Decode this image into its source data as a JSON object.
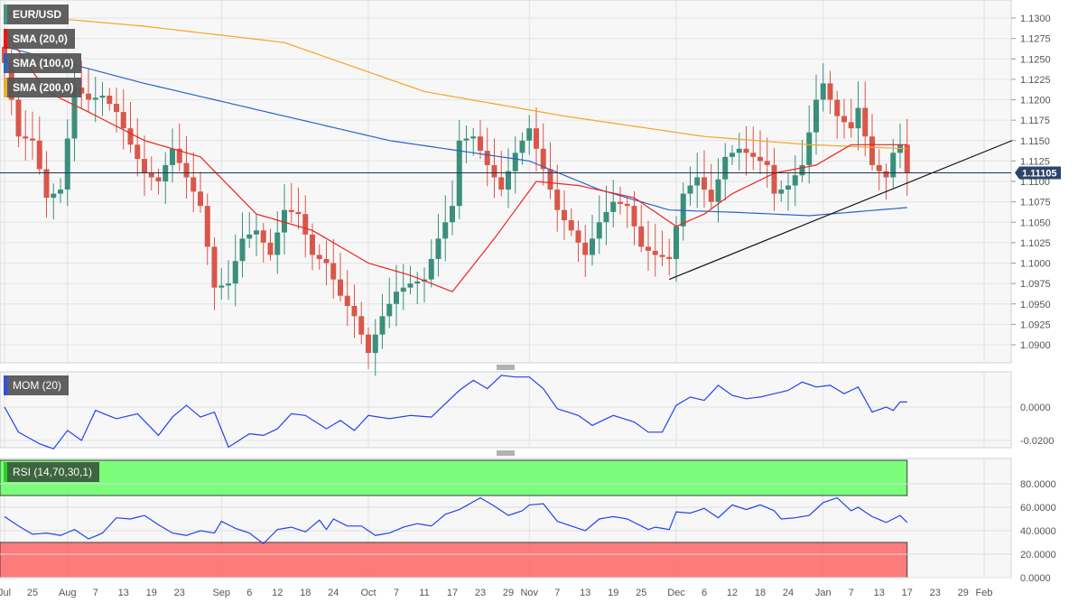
{
  "chart_data": {
    "type": "candlestick",
    "title": "EUR/USD",
    "symbol": "EUR/USD",
    "last_price": "1.11105",
    "last_price_value": 1.11105,
    "colors": {
      "up": "#3b8f7b",
      "down": "#d9574a",
      "sma20": "#ee2222",
      "sma100": "#2a62c9",
      "sma200": "#f5a623",
      "mom": "#2242ee",
      "rsi": "#2242ee",
      "overbought": "#66ff66",
      "oversold": "#ff6666"
    },
    "legend": [
      {
        "label": "EUR/USD",
        "color": "#3b8f7b"
      },
      {
        "label": "SMA (20,0)",
        "color": "#ff0000"
      },
      {
        "label": "SMA (100,0)",
        "color": "#1d5fc7"
      },
      {
        "label": "SMA (200,0)",
        "color": "#f5a623"
      }
    ],
    "ylim": [
      1.0875,
      1.1322
    ],
    "yticks": [
      "1.1300",
      "1.1275",
      "1.1250",
      "1.1225",
      "1.1200",
      "1.1175",
      "1.1150",
      "1.1125",
      "1.1100",
      "1.1075",
      "1.1050",
      "1.1025",
      "1.1000",
      "1.0975",
      "1.0950",
      "1.0925",
      "1.0900"
    ],
    "xticks": [
      [
        0,
        "Jul"
      ],
      [
        4,
        "25"
      ],
      [
        9,
        "Aug"
      ],
      [
        13,
        "7"
      ],
      [
        17,
        "13"
      ],
      [
        21,
        "19"
      ],
      [
        25,
        "23"
      ],
      [
        31,
        "Sep"
      ],
      [
        35,
        "6"
      ],
      [
        39,
        "12"
      ],
      [
        43,
        "18"
      ],
      [
        47,
        "24"
      ],
      [
        52,
        "Oct"
      ],
      [
        56,
        "7"
      ],
      [
        60,
        "11"
      ],
      [
        64,
        "17"
      ],
      [
        68,
        "23"
      ],
      [
        72,
        "29"
      ],
      [
        75,
        "Nov"
      ],
      [
        79,
        "7"
      ],
      [
        83,
        "13"
      ],
      [
        87,
        "19"
      ],
      [
        91,
        "25"
      ],
      [
        96,
        "Dec"
      ],
      [
        100,
        "6"
      ],
      [
        104,
        "12"
      ],
      [
        108,
        "18"
      ],
      [
        112,
        "24"
      ],
      [
        117,
        "Jan"
      ],
      [
        121,
        "7"
      ],
      [
        125,
        "13"
      ],
      [
        129,
        "17"
      ],
      [
        133,
        "23"
      ],
      [
        137,
        "29"
      ],
      [
        140,
        "Feb"
      ]
    ],
    "close": [
      [
        0,
        1.1245
      ],
      [
        2,
        1.1155
      ],
      [
        4,
        1.115
      ],
      [
        6,
        1.108
      ],
      [
        8,
        1.109
      ],
      [
        10,
        1.1215
      ],
      [
        12,
        1.12
      ],
      [
        14,
        1.1205
      ],
      [
        16,
        1.1185
      ],
      [
        18,
        1.1145
      ],
      [
        20,
        1.111
      ],
      [
        22,
        1.11
      ],
      [
        24,
        1.114
      ],
      [
        26,
        1.1105
      ],
      [
        28,
        1.107
      ],
      [
        30,
        1.097
      ],
      [
        32,
        1.0975
      ],
      [
        34,
        1.103
      ],
      [
        36,
        1.104
      ],
      [
        38,
        1.101
      ],
      [
        40,
        1.1065
      ],
      [
        42,
        1.106
      ],
      [
        44,
        1.101
      ],
      [
        46,
        1.1
      ],
      [
        48,
        1.096
      ],
      [
        50,
        1.0935
      ],
      [
        52,
        1.089
      ],
      [
        54,
        1.0935
      ],
      [
        56,
        1.0965
      ],
      [
        58,
        1.0975
      ],
      [
        60,
        1.098
      ],
      [
        62,
        1.103
      ],
      [
        64,
        1.107
      ],
      [
        65,
        1.115
      ],
      [
        67,
        1.1155
      ],
      [
        69,
        1.112
      ],
      [
        71,
        1.109
      ],
      [
        73,
        1.1135
      ],
      [
        75,
        1.1165
      ],
      [
        77,
        1.1115
      ],
      [
        79,
        1.1065
      ],
      [
        81,
        1.104
      ],
      [
        83,
        1.101
      ],
      [
        85,
        1.105
      ],
      [
        87,
        1.1075
      ],
      [
        89,
        1.107
      ],
      [
        91,
        1.102
      ],
      [
        93,
        1.101
      ],
      [
        95,
        1.1005
      ],
      [
        97,
        1.1085
      ],
      [
        99,
        1.1105
      ],
      [
        101,
        1.1075
      ],
      [
        103,
        1.113
      ],
      [
        105,
        1.114
      ],
      [
        107,
        1.113
      ],
      [
        109,
        1.112
      ],
      [
        110,
        1.1085
      ],
      [
        112,
        1.1095
      ],
      [
        114,
        1.112
      ],
      [
        116,
        1.12
      ],
      [
        117,
        1.122
      ],
      [
        119,
        1.118
      ],
      [
        121,
        1.1165
      ],
      [
        122,
        1.119
      ],
      [
        124,
        1.112
      ],
      [
        126,
        1.1105
      ],
      [
        127,
        1.1135
      ],
      [
        128,
        1.1145
      ],
      [
        129,
        1.11105
      ]
    ],
    "sma20": [
      [
        0,
        1.1285
      ],
      [
        6,
        1.121
      ],
      [
        12,
        1.1185
      ],
      [
        20,
        1.115
      ],
      [
        28,
        1.113
      ],
      [
        36,
        1.106
      ],
      [
        44,
        1.104
      ],
      [
        52,
        1.1
      ],
      [
        58,
        1.0985
      ],
      [
        64,
        1.0965
      ],
      [
        70,
        1.103
      ],
      [
        76,
        1.11
      ],
      [
        82,
        1.1095
      ],
      [
        90,
        1.108
      ],
      [
        96,
        1.1045
      ],
      [
        100,
        1.106
      ],
      [
        104,
        1.1085
      ],
      [
        110,
        1.111
      ],
      [
        116,
        1.112
      ],
      [
        121,
        1.1145
      ],
      [
        129,
        1.1145
      ]
    ],
    "sma100": [
      [
        0,
        1.1265
      ],
      [
        20,
        1.122
      ],
      [
        40,
        1.118
      ],
      [
        55,
        1.115
      ],
      [
        75,
        1.1125
      ],
      [
        85,
        1.109
      ],
      [
        95,
        1.1065
      ],
      [
        105,
        1.1062
      ],
      [
        115,
        1.1058
      ],
      [
        129,
        1.1068
      ]
    ],
    "sma200": [
      [
        0,
        1.1305
      ],
      [
        20,
        1.129
      ],
      [
        40,
        1.127
      ],
      [
        60,
        1.121
      ],
      [
        80,
        1.118
      ],
      [
        100,
        1.1155
      ],
      [
        115,
        1.1145
      ],
      [
        129,
        1.114
      ]
    ],
    "trendline": [
      [
        95,
        1.098
      ],
      [
        144,
        1.115
      ]
    ],
    "mom": {
      "label": "MOM (20)",
      "yticks": [
        "0.0000",
        "-0.0200"
      ],
      "ylim": [
        -0.027,
        0.021
      ],
      "values": [
        [
          0,
          0
        ],
        [
          2,
          -0.015
        ],
        [
          5,
          -0.022
        ],
        [
          7,
          -0.025
        ],
        [
          9,
          -0.014
        ],
        [
          11,
          -0.02
        ],
        [
          13,
          -0.002
        ],
        [
          16,
          -0.007
        ],
        [
          19,
          -0.004
        ],
        [
          22,
          -0.017
        ],
        [
          24,
          -0.006
        ],
        [
          26,
          0.001
        ],
        [
          28,
          -0.006
        ],
        [
          30,
          -0.003
        ],
        [
          32,
          -0.024
        ],
        [
          35,
          -0.016
        ],
        [
          37,
          -0.017
        ],
        [
          39,
          -0.013
        ],
        [
          41,
          -0.004
        ],
        [
          43,
          -0.005
        ],
        [
          46,
          -0.013
        ],
        [
          48,
          -0.008
        ],
        [
          50,
          -0.014
        ],
        [
          52,
          -0.005
        ],
        [
          55,
          -0.007
        ],
        [
          58,
          -0.005
        ],
        [
          61,
          -0.006
        ],
        [
          63,
          0.002
        ],
        [
          65,
          0.01
        ],
        [
          67,
          0.016
        ],
        [
          69,
          0.011
        ],
        [
          71,
          0.019
        ],
        [
          73,
          0.018
        ],
        [
          75,
          0.018
        ],
        [
          77,
          0.011
        ],
        [
          79,
          -0.001
        ],
        [
          82,
          -0.005
        ],
        [
          84,
          -0.011
        ],
        [
          87,
          -0.005
        ],
        [
          90,
          -0.009
        ],
        [
          92,
          -0.015
        ],
        [
          94,
          -0.015
        ],
        [
          96,
          0.001
        ],
        [
          98,
          0.006
        ],
        [
          100,
          0.004
        ],
        [
          102,
          0.013
        ],
        [
          104,
          0.007
        ],
        [
          106,
          0.005
        ],
        [
          108,
          0.006
        ],
        [
          110,
          0.008
        ],
        [
          112,
          0.01
        ],
        [
          114,
          0.015
        ],
        [
          116,
          0.012
        ],
        [
          118,
          0.013
        ],
        [
          120,
          0.008
        ],
        [
          122,
          0.012
        ],
        [
          124,
          -0.003
        ],
        [
          126,
          0
        ],
        [
          127,
          -0.002
        ],
        [
          128,
          0.003
        ],
        [
          129,
          0.003
        ]
      ]
    },
    "rsi": {
      "label": "RSI (14,70,30,1)",
      "yticks": [
        "80.0000",
        "60.0000",
        "40.0000",
        "20.0000",
        "0.0000"
      ],
      "ylim": [
        0,
        100
      ],
      "overbought": 70,
      "oversold": 30,
      "values": [
        [
          0,
          52
        ],
        [
          2,
          44
        ],
        [
          4,
          37
        ],
        [
          6,
          38
        ],
        [
          8,
          36
        ],
        [
          10,
          41
        ],
        [
          12,
          33
        ],
        [
          14,
          38
        ],
        [
          16,
          51
        ],
        [
          18,
          50
        ],
        [
          20,
          53
        ],
        [
          22,
          45
        ],
        [
          24,
          38
        ],
        [
          26,
          36
        ],
        [
          28,
          40
        ],
        [
          30,
          38
        ],
        [
          31,
          48
        ],
        [
          33,
          42
        ],
        [
          35,
          38
        ],
        [
          37,
          29
        ],
        [
          39,
          41
        ],
        [
          41,
          43
        ],
        [
          43,
          39
        ],
        [
          45,
          49
        ],
        [
          46,
          41
        ],
        [
          47,
          50
        ],
        [
          49,
          44
        ],
        [
          51,
          44
        ],
        [
          53,
          36
        ],
        [
          55,
          38
        ],
        [
          57,
          43
        ],
        [
          59,
          46
        ],
        [
          61,
          44
        ],
        [
          63,
          54
        ],
        [
          65,
          58
        ],
        [
          68,
          68
        ],
        [
          70,
          61
        ],
        [
          72,
          53
        ],
        [
          74,
          57
        ],
        [
          75,
          62
        ],
        [
          77,
          63
        ],
        [
          79,
          48
        ],
        [
          81,
          44
        ],
        [
          83,
          40
        ],
        [
          85,
          50
        ],
        [
          87,
          52
        ],
        [
          89,
          50
        ],
        [
          91,
          44
        ],
        [
          92,
          41
        ],
        [
          93,
          43
        ],
        [
          95,
          41
        ],
        [
          96,
          56
        ],
        [
          98,
          55
        ],
        [
          100,
          59
        ],
        [
          102,
          51
        ],
        [
          104,
          62
        ],
        [
          106,
          58
        ],
        [
          108,
          62
        ],
        [
          110,
          57
        ],
        [
          111,
          50
        ],
        [
          113,
          51
        ],
        [
          115,
          53
        ],
        [
          117,
          64
        ],
        [
          119,
          68
        ],
        [
          121,
          57
        ],
        [
          122,
          60
        ],
        [
          124,
          52
        ],
        [
          126,
          47
        ],
        [
          128,
          53
        ],
        [
          129,
          47
        ]
      ]
    }
  }
}
